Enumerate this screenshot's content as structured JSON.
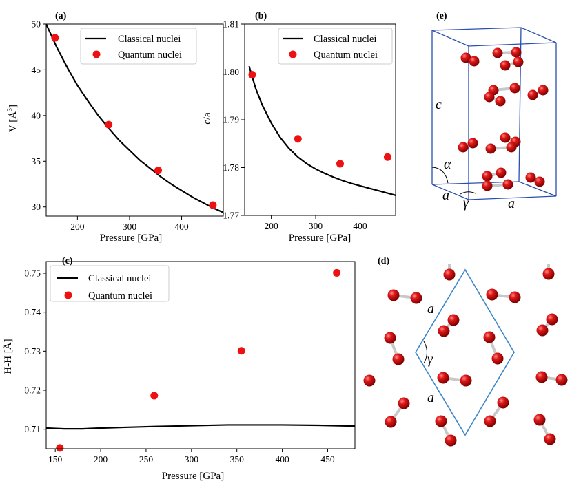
{
  "colors": {
    "classical": "#000000",
    "quantum": "#ee1111",
    "cell": "#2a4fb0",
    "lattice": "#3a86c8",
    "atom": "#d01010",
    "bond": "#c8c8c8"
  },
  "chart_data": [
    {
      "id": "a",
      "panel_label": "(a)",
      "type": "line",
      "xlabel": "Pressure [GPa]",
      "ylabel": "V [Å",
      "ylabel_exp": "3",
      "ylabel_close": "]",
      "xlim": [
        140,
        480
      ],
      "ylim": [
        29,
        50
      ],
      "xticks": [
        200,
        300,
        400
      ],
      "yticks": [
        30,
        35,
        40,
        45,
        50
      ],
      "legend": {
        "position": "top-right",
        "entries": [
          "Classical nuclei",
          "Quantum nuclei"
        ]
      },
      "series": [
        {
          "name": "Classical nuclei",
          "kind": "line",
          "x": [
            140,
            160,
            180,
            200,
            220,
            240,
            260,
            280,
            300,
            320,
            340,
            360,
            380,
            400,
            420,
            440,
            460,
            480
          ],
          "y": [
            50.0,
            47.5,
            45.3,
            43.3,
            41.6,
            40.0,
            38.6,
            37.3,
            36.2,
            35.1,
            34.2,
            33.3,
            32.5,
            31.8,
            31.1,
            30.5,
            29.9,
            29.4
          ]
        },
        {
          "name": "Quantum nuclei",
          "kind": "scatter",
          "x": [
            157,
            260,
            355,
            460
          ],
          "y": [
            48.5,
            39.0,
            34.0,
            30.2
          ]
        }
      ]
    },
    {
      "id": "b",
      "panel_label": "(b)",
      "type": "line",
      "xlabel": "Pressure [GPa]",
      "ylabel": "c/a",
      "xlim": [
        140,
        480
      ],
      "ylim": [
        1.77,
        1.81
      ],
      "xticks": [
        200,
        300,
        400
      ],
      "yticks": [
        "1.77",
        "1.78",
        "1.79",
        "1.80",
        "1.81"
      ],
      "legend": {
        "position": "top-right",
        "entries": [
          "Classical nuclei",
          "Quantum nuclei"
        ]
      },
      "series": [
        {
          "name": "Classical nuclei",
          "kind": "line",
          "x": [
            150,
            165,
            180,
            200,
            220,
            240,
            260,
            280,
            300,
            320,
            340,
            360,
            380,
            400,
            420,
            440,
            460,
            480
          ],
          "y": [
            1.8012,
            1.7965,
            1.793,
            1.7893,
            1.7863,
            1.784,
            1.7822,
            1.7808,
            1.7797,
            1.7788,
            1.778,
            1.7773,
            1.7767,
            1.7762,
            1.7757,
            1.7752,
            1.7747,
            1.7742
          ]
        },
        {
          "name": "Quantum nuclei",
          "kind": "scatter",
          "x": [
            157,
            260,
            355,
            462
          ],
          "y": [
            1.7994,
            1.786,
            1.7808,
            1.7822
          ]
        }
      ]
    },
    {
      "id": "c",
      "panel_label": "(c)",
      "type": "line",
      "xlabel": "Pressure [GPa]",
      "ylabel": "H-H [Å]",
      "xlim": [
        140,
        480
      ],
      "ylim": [
        0.705,
        0.753
      ],
      "xticks": [
        150,
        200,
        250,
        300,
        350,
        400,
        450
      ],
      "yticks": [
        "0.71",
        "0.72",
        "0.73",
        "0.74",
        "0.75"
      ],
      "legend": {
        "position": "top-left",
        "entries": [
          "Classical nuclei",
          "Quantum nuclei"
        ]
      },
      "series": [
        {
          "name": "Classical nuclei",
          "kind": "line",
          "x": [
            140,
            160,
            180,
            200,
            230,
            260,
            300,
            340,
            380,
            400,
            440,
            480
          ],
          "y": [
            0.7103,
            0.7101,
            0.7101,
            0.7103,
            0.7105,
            0.7107,
            0.7109,
            0.7111,
            0.7111,
            0.7111,
            0.711,
            0.7108
          ]
        },
        {
          "name": "Quantum nuclei",
          "kind": "scatter",
          "x": [
            155,
            259,
            355,
            460
          ],
          "y": [
            0.7052,
            0.7186,
            0.7301,
            0.7501
          ]
        }
      ]
    }
  ],
  "panel_e": {
    "label": "(e)",
    "c": "c",
    "a1": "a",
    "a2": "a",
    "alpha": "α",
    "gamma": "γ"
  },
  "panel_d": {
    "label": "(d)",
    "a1": "a",
    "a2": "a",
    "gamma": "γ"
  }
}
